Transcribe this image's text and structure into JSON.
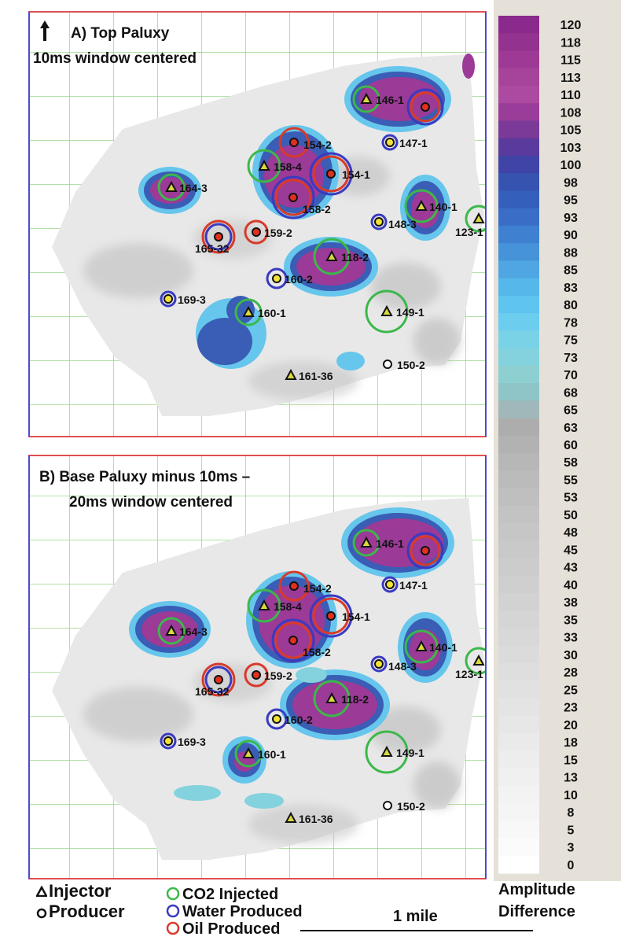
{
  "panel_a": {
    "title_line1": "A)  Top Paluxy",
    "title_line2": "10ms window centered"
  },
  "panel_b": {
    "title_line1": "B)  Base Paluxy minus 10ms –",
    "title_line2": "20ms window centered"
  },
  "colorbar": {
    "title_line1": "Amplitude",
    "title_line2": "Difference",
    "ticks": [
      "120",
      "118",
      "115",
      "113",
      "110",
      "108",
      "105",
      "103",
      "100",
      "98",
      "95",
      "93",
      "90",
      "88",
      "85",
      "83",
      "80",
      "78",
      "75",
      "73",
      "70",
      "68",
      "65",
      "63",
      "60",
      "58",
      "55",
      "53",
      "50",
      "48",
      "45",
      "43",
      "40",
      "38",
      "35",
      "33",
      "30",
      "28",
      "25",
      "23",
      "20",
      "18",
      "15",
      "13",
      "10",
      "8",
      "5",
      "3",
      "0"
    ],
    "colors": [
      "#8a2a8c",
      "#94328f",
      "#9e3a95",
      "#a6449b",
      "#ab4aa0",
      "#9a3c99",
      "#7b3a98",
      "#5a3a9c",
      "#3f44a6",
      "#3753b0",
      "#345fba",
      "#3a6ec6",
      "#3f80d0",
      "#4793da",
      "#4fa6e2",
      "#56b7ea",
      "#5fc4ef",
      "#6ccdef",
      "#79d2e6",
      "#84d2dd",
      "#8ed0d2",
      "#8fc5c7",
      "#a0b8ba",
      "#adadad",
      "#b2b2b2",
      "#b7b7b7",
      "#bbbbbb",
      "#bfbfbf",
      "#c3c3c3",
      "#c6c6c6",
      "#c9c9c9",
      "#cccccc",
      "#cfcfcf",
      "#d2d2d2",
      "#d5d5d5",
      "#d8d8d8",
      "#dbdbdb",
      "#dedede",
      "#e1e1e1",
      "#e4e4e4",
      "#e7e7e7",
      "#eaeaea",
      "#ededed",
      "#f0f0f0",
      "#f3f3f3",
      "#f5f5f5",
      "#f8f8f8",
      "#fbfbfb",
      "#ffffff"
    ]
  },
  "legend": {
    "injector": "Injector",
    "producer": "Producer",
    "co2": "CO2 Injected",
    "water": "Water Produced",
    "oil": "Oil Produced",
    "scale": "1 mile"
  },
  "wells_a": [
    {
      "label": "146-1",
      "type": "injector",
      "rings": [
        "co2"
      ]
    },
    {
      "label": "",
      "type": "producer",
      "rings": [
        "oil",
        "water"
      ]
    },
    {
      "label": "154-2",
      "type": "producer",
      "rings": [
        "oil"
      ]
    },
    {
      "label": "147-1",
      "type": "producer",
      "rings": [
        "water"
      ]
    },
    {
      "label": "158-4",
      "type": "injector",
      "rings": [
        "co2"
      ]
    },
    {
      "label": "154-1",
      "type": "producer",
      "rings": [
        "oil",
        "water"
      ]
    },
    {
      "label": "164-3",
      "type": "injector",
      "rings": [
        "co2"
      ]
    },
    {
      "label": "158-2",
      "type": "producer",
      "rings": [
        "oil",
        "water"
      ]
    },
    {
      "label": "140-1",
      "type": "injector",
      "rings": [
        "co2"
      ]
    },
    {
      "label": "123-1",
      "type": "injector",
      "rings": [
        "co2"
      ]
    },
    {
      "label": "148-3",
      "type": "producer",
      "rings": [
        "water"
      ]
    },
    {
      "label": "159-2",
      "type": "producer",
      "rings": [
        "oil"
      ]
    },
    {
      "label": "165-32",
      "type": "producer",
      "rings": [
        "water",
        "oil"
      ]
    },
    {
      "label": "118-2",
      "type": "injector",
      "rings": [
        "co2"
      ]
    },
    {
      "label": "160-2",
      "type": "producer",
      "rings": [
        "water"
      ]
    },
    {
      "label": "169-3",
      "type": "producer",
      "rings": [
        "water"
      ]
    },
    {
      "label": "160-1",
      "type": "injector",
      "rings": [
        "co2"
      ]
    },
    {
      "label": "149-1",
      "type": "injector",
      "rings": [
        "co2"
      ]
    },
    {
      "label": "150-2",
      "type": "producer",
      "rings": []
    },
    {
      "label": "161-36",
      "type": "injector",
      "rings": []
    }
  ],
  "wells_b": [
    {
      "label": "146-1",
      "type": "injector",
      "rings": [
        "co2"
      ]
    },
    {
      "label": "",
      "type": "producer",
      "rings": [
        "oil",
        "water"
      ]
    },
    {
      "label": "154-2",
      "type": "producer",
      "rings": [
        "oil"
      ]
    },
    {
      "label": "147-1",
      "type": "producer",
      "rings": [
        "water"
      ]
    },
    {
      "label": "158-4",
      "type": "injector",
      "rings": [
        "co2"
      ]
    },
    {
      "label": "154-1",
      "type": "producer",
      "rings": [
        "oil",
        "water"
      ]
    },
    {
      "label": "164-3",
      "type": "injector",
      "rings": [
        "co2"
      ]
    },
    {
      "label": "158-2",
      "type": "producer",
      "rings": [
        "oil",
        "water"
      ]
    },
    {
      "label": "140-1",
      "type": "injector",
      "rings": [
        "co2"
      ]
    },
    {
      "label": "123-1",
      "type": "injector",
      "rings": [
        "co2"
      ]
    },
    {
      "label": "148-3",
      "type": "producer",
      "rings": [
        "water"
      ]
    },
    {
      "label": "159-2",
      "type": "producer",
      "rings": [
        "oil"
      ]
    },
    {
      "label": "165-32",
      "type": "producer",
      "rings": [
        "water",
        "oil"
      ]
    },
    {
      "label": "118-2",
      "type": "injector",
      "rings": [
        "co2"
      ]
    },
    {
      "label": "160-2",
      "type": "producer",
      "rings": [
        "water"
      ]
    },
    {
      "label": "169-3",
      "type": "producer",
      "rings": [
        "water"
      ]
    },
    {
      "label": "160-1",
      "type": "injector",
      "rings": [
        "co2"
      ]
    },
    {
      "label": "149-1",
      "type": "injector",
      "rings": [
        "co2"
      ]
    },
    {
      "label": "150-2",
      "type": "producer",
      "rings": []
    },
    {
      "label": "161-36",
      "type": "injector",
      "rings": []
    }
  ]
}
